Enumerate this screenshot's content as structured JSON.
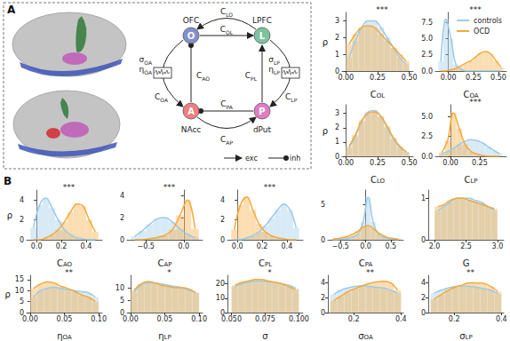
{
  "panel_labels": [
    "A",
    "B"
  ],
  "diagram": {
    "nodes": [
      {
        "id": "O",
        "label": "O",
        "name": "OFC",
        "color": "#8190cf"
      },
      {
        "id": "L",
        "label": "L",
        "name": "LPFC",
        "color": "#7cc39c"
      },
      {
        "id": "A",
        "label": "A",
        "name": "NAcc",
        "color": "#ee7f80"
      },
      {
        "id": "P",
        "label": "P",
        "name": "dPut",
        "color": "#e07cc6"
      }
    ],
    "edges": [
      {
        "from": "L",
        "to": "O",
        "label": {
          "base": "C",
          "sub": "LO"
        },
        "kind": "exc"
      },
      {
        "from": "O",
        "to": "L",
        "label": {
          "base": "C",
          "sub": "OL"
        },
        "kind": "exc"
      },
      {
        "from": "O",
        "to": "A",
        "label": {
          "base": "C",
          "sub": "OA"
        },
        "kind": "exc",
        "noise": [
          {
            "base": "σ",
            "sub": "OA"
          },
          {
            "base": "η",
            "sub": "OA"
          }
        ]
      },
      {
        "from": "A",
        "to": "O",
        "label": {
          "base": "C",
          "sub": "AO"
        },
        "kind": "inh"
      },
      {
        "from": "L",
        "to": "P",
        "label": {
          "base": "C",
          "sub": "LP"
        },
        "kind": "exc",
        "noise": [
          {
            "base": "σ",
            "sub": "LP"
          },
          {
            "base": "η",
            "sub": "LP"
          }
        ]
      },
      {
        "from": "P",
        "to": "L",
        "label": {
          "base": "C",
          "sub": "PL"
        },
        "kind": "exc"
      },
      {
        "from": "P",
        "to": "A",
        "label": {
          "base": "C",
          "sub": "PA"
        },
        "kind": "inh"
      },
      {
        "from": "A",
        "to": "P",
        "label": {
          "base": "C",
          "sub": "AP"
        },
        "kind": "exc"
      }
    ],
    "key": [
      {
        "kind": "exc",
        "label": "exc",
        "marker": "arrow"
      },
      {
        "kind": "inh",
        "label": "inh",
        "marker": "circle"
      }
    ]
  },
  "chart_data": [
    {
      "type": "histogram",
      "title": "***",
      "xlabel": {
        "base": "C",
        "sub": "OL"
      },
      "ylabel": "ρ",
      "bins": [
        0,
        0.05,
        0.1,
        0.15,
        0.2,
        0.25,
        0.3,
        0.35,
        0.4,
        0.45,
        0.5
      ],
      "series": [
        {
          "name": "controls",
          "color": "#9ccae8",
          "values": [
            0.8,
            1.8,
            2.6,
            3.0,
            3.0,
            2.6,
            2.0,
            1.4,
            0.8,
            0.4
          ]
        },
        {
          "name": "OCD",
          "color": "#f4a93c",
          "values": [
            1.6,
            2.2,
            2.6,
            2.7,
            2.6,
            2.2,
            1.8,
            1.4,
            1.0,
            0.6
          ]
        }
      ],
      "xlim": [
        -0.03,
        0.53
      ],
      "xticks": [
        {
          "value": 0,
          "label": "0.00"
        },
        0.25,
        {
          "value": 0.5,
          "label": "0.50"
        }
      ],
      "ylim": [
        0,
        3.5
      ],
      "yticks": [
        0,
        1,
        2,
        3
      ]
    },
    {
      "type": "histogram",
      "title": "***",
      "xlabel": {
        "base": "C",
        "sub": "OA"
      },
      "legend": "upper right",
      "bins": [
        -0.1,
        -0.05,
        0,
        0.05,
        0.1,
        0.15,
        0.2,
        0.25,
        0.3,
        0.35,
        0.4,
        0.45,
        0.5,
        0.55
      ],
      "series": [
        {
          "name": "controls",
          "color": "#9ccae8",
          "values": [
            1.5,
            8.0,
            5.0,
            1.0,
            0.3,
            0,
            0,
            0,
            0,
            0,
            0,
            0,
            0
          ]
        },
        {
          "name": "OCD",
          "color": "#f4a93c",
          "values": [
            0,
            0,
            0.2,
            0.4,
            0.8,
            1.2,
            1.6,
            2.2,
            2.8,
            3.0,
            2.6,
            1.6,
            0.6
          ]
        }
      ],
      "xlim": [
        -0.13,
        0.58
      ],
      "xticks": [
        {
          "value": 0,
          "label": "0.00"
        },
        0.25,
        {
          "value": 0.5,
          "label": "0.50"
        }
      ],
      "ylim": [
        0,
        9
      ],
      "yticks": [
        {
          "value": 0,
          "label": "0.0"
        },
        2.5,
        {
          "value": 5,
          "label": "5.0"
        },
        7.5
      ]
    },
    {
      "type": "histogram",
      "xlabel": {
        "base": "C",
        "sub": "LO"
      },
      "ylabel": "ρ",
      "bins": [
        0,
        0.05,
        0.1,
        0.15,
        0.2,
        0.25,
        0.3,
        0.35,
        0.4,
        0.45,
        0.5
      ],
      "series": [
        {
          "name": "controls",
          "color": "#9ccae8",
          "values": [
            0.6,
            1.4,
            2.4,
            3.1,
            3.2,
            2.8,
            2.0,
            1.2,
            0.6,
            0.3
          ]
        },
        {
          "name": "OCD",
          "color": "#f4a93c",
          "values": [
            0.7,
            1.5,
            2.5,
            3.0,
            3.1,
            2.8,
            2.1,
            1.3,
            0.7,
            0.3
          ]
        }
      ],
      "xlim": [
        -0.03,
        0.53
      ],
      "xticks": [
        {
          "value": 0,
          "label": "0.00"
        },
        0.25,
        {
          "value": 0.5,
          "label": "0.50"
        }
      ],
      "ylim": [
        0,
        3.6
      ],
      "yticks": [
        0,
        1,
        2,
        3
      ]
    },
    {
      "type": "histogram",
      "title": "***",
      "xlabel": {
        "base": "C",
        "sub": "LP"
      },
      "bins": [
        -0.1,
        -0.05,
        0,
        0.05,
        0.1,
        0.15,
        0.2,
        0.25,
        0.3,
        0.35,
        0.4,
        0.45
      ],
      "series": [
        {
          "name": "controls",
          "color": "#9ccae8",
          "values": [
            0.3,
            0.6,
            1.0,
            1.5,
            1.9,
            2.1,
            2.0,
            1.7,
            1.2,
            0.7,
            0.3
          ]
        },
        {
          "name": "OCD",
          "color": "#f4a93c",
          "values": [
            0.5,
            2.0,
            5.5,
            3.5,
            1.5,
            0.6,
            0.3,
            0.1,
            0,
            0,
            0
          ]
        }
      ],
      "xlim": [
        -0.13,
        0.48
      ],
      "xticks": [
        {
          "value": 0,
          "label": "0.00"
        },
        0.25
      ],
      "ylim": [
        0,
        6.5
      ],
      "yticks": [
        {
          "value": 0,
          "label": "0.0"
        },
        2.5,
        {
          "value": 5,
          "label": "5.0"
        }
      ]
    },
    {
      "type": "histogram",
      "title": "***",
      "xlabel": {
        "base": "C",
        "sub": "AO"
      },
      "ylabel": "ρ",
      "bins": [
        -0.05,
        0,
        0.05,
        0.1,
        0.15,
        0.2,
        0.25,
        0.3,
        0.35,
        0.4,
        0.45,
        0.5
      ],
      "series": [
        {
          "name": "controls",
          "color": "#9ccae8",
          "values": [
            1.2,
            3.5,
            4.2,
            3.2,
            2.0,
            1.0,
            0.5,
            0.2,
            0.1,
            0,
            0
          ]
        },
        {
          "name": "OCD",
          "color": "#f4a93c",
          "values": [
            0,
            0,
            0.2,
            0.5,
            1.0,
            1.8,
            2.8,
            3.6,
            3.4,
            2.0,
            0.8
          ]
        }
      ],
      "xlim": [
        -0.08,
        0.53
      ],
      "xticks": [
        {
          "value": 0,
          "label": "0.0"
        },
        0.2,
        0.4
      ],
      "ylim": [
        0,
        5
      ],
      "yticks": [
        0,
        2,
        4
      ]
    },
    {
      "type": "histogram",
      "title": "***",
      "xlabel": {
        "base": "C",
        "sub": "AP"
      },
      "bins": [
        -0.7,
        -0.6,
        -0.5,
        -0.4,
        -0.3,
        -0.2,
        -0.1,
        0,
        0.1,
        0.2
      ],
      "series": [
        {
          "name": "controls",
          "color": "#9ccae8",
          "values": [
            0.3,
            0.8,
            1.4,
            1.9,
            2.0,
            1.6,
            1.0,
            0.5,
            0.2
          ]
        },
        {
          "name": "OCD",
          "color": "#f4a93c",
          "values": [
            0,
            0,
            0.1,
            0.2,
            0.4,
            0.9,
            2.2,
            3.6,
            1.0
          ]
        }
      ],
      "xlim": [
        -0.75,
        0.25
      ],
      "xticks": [
        {
          "value": -0.5,
          "label": "−0.5"
        },
        {
          "value": 0,
          "label": "0.0"
        }
      ],
      "ylim": [
        0,
        4.5
      ],
      "yticks": [
        0,
        2,
        4
      ]
    },
    {
      "type": "histogram",
      "title": "***",
      "xlabel": {
        "base": "C",
        "sub": "PL"
      },
      "bins": [
        -0.05,
        0,
        0.05,
        0.1,
        0.15,
        0.2,
        0.25,
        0.3,
        0.35,
        0.4,
        0.45,
        0.5
      ],
      "series": [
        {
          "name": "controls",
          "color": "#9ccae8",
          "values": [
            0,
            0,
            0.2,
            0.4,
            0.8,
            1.4,
            2.2,
            3.0,
            3.6,
            3.0,
            1.2
          ]
        },
        {
          "name": "OCD",
          "color": "#f4a93c",
          "values": [
            1.0,
            3.5,
            4.3,
            3.0,
            1.6,
            0.8,
            0.4,
            0.2,
            0.1,
            0,
            0
          ]
        }
      ],
      "xlim": [
        -0.08,
        0.53
      ],
      "xticks": [
        {
          "value": 0,
          "label": "0.0"
        },
        0.2,
        0.4
      ],
      "ylim": [
        0,
        5
      ],
      "yticks": [
        0,
        2,
        4
      ]
    },
    {
      "type": "histogram",
      "xlabel": {
        "base": "C",
        "sub": "PA"
      },
      "bins": [
        -0.7,
        -0.6,
        -0.5,
        -0.4,
        -0.3,
        -0.2,
        -0.1,
        0,
        0.1,
        0.2,
        0.3,
        0.4,
        0.5,
        0.6,
        0.7
      ],
      "series": [
        {
          "name": "controls",
          "color": "#9ccae8",
          "values": [
            0,
            0,
            0.1,
            0.2,
            0.4,
            0.8,
            2.5,
            6.0,
            2.5,
            0.8,
            0.4,
            0.2,
            0.1,
            0
          ]
        },
        {
          "name": "OCD",
          "color": "#f4a93c",
          "values": [
            0.1,
            0.2,
            0.3,
            0.5,
            0.8,
            1.2,
            1.8,
            2.0,
            1.6,
            1.0,
            0.6,
            0.3,
            0.2,
            0.1
          ]
        }
      ],
      "xlim": [
        -0.75,
        0.75
      ],
      "xticks": [
        {
          "value": -0.5,
          "label": "−0.5"
        },
        {
          "value": 0,
          "label": "0.0"
        },
        0.5
      ],
      "ylim": [
        0,
        7
      ],
      "yticks": [
        0,
        5
      ]
    },
    {
      "type": "histogram",
      "xlabel": {
        "base": "G"
      },
      "bins": [
        2.0,
        2.1,
        2.2,
        2.3,
        2.4,
        2.5,
        2.6,
        2.7,
        2.8,
        2.9,
        3.0
      ],
      "series": [
        {
          "name": "controls",
          "color": "#9ccae8",
          "values": [
            0.7,
            0.8,
            0.9,
            1.0,
            1.0,
            1.0,
            0.95,
            0.9,
            0.8,
            0.7
          ]
        },
        {
          "name": "OCD",
          "color": "#f4a93c",
          "values": [
            0.8,
            0.85,
            0.95,
            1.0,
            1.0,
            0.95,
            0.9,
            0.85,
            0.8,
            0.75
          ]
        }
      ],
      "xlim": [
        1.9,
        3.1
      ],
      "xticks": [
        {
          "value": 2,
          "label": "2.0"
        },
        2.5,
        {
          "value": 3,
          "label": "3.0"
        }
      ],
      "ylim": [
        0,
        1.2
      ],
      "yticks": [
        0,
        1
      ]
    },
    {
      "type": "histogram",
      "title": "**",
      "xlabel": {
        "base": "η",
        "sub": "OA"
      },
      "ylabel": "ρ",
      "bins": [
        0,
        0.01,
        0.02,
        0.03,
        0.04,
        0.05,
        0.06,
        0.07,
        0.08,
        0.09,
        0.1
      ],
      "series": [
        {
          "name": "controls",
          "color": "#9ccae8",
          "values": [
            7,
            10,
            11,
            11.5,
            11,
            10.5,
            10,
            9.5,
            9,
            7
          ]
        },
        {
          "name": "OCD",
          "color": "#f4a93c",
          "values": [
            11,
            13,
            14,
            13.5,
            12,
            11,
            9.5,
            8,
            7,
            5
          ]
        }
      ],
      "xlim": [
        -0.005,
        0.105
      ],
      "xticks": [
        {
          "value": 0,
          "label": "0.00"
        },
        0.05,
        {
          "value": 0.1,
          "label": "0.10"
        }
      ],
      "ylim": [
        0,
        17
      ],
      "yticks": [
        0,
        5,
        10,
        15
      ]
    },
    {
      "type": "histogram",
      "title": "*",
      "xlabel": {
        "base": "η",
        "sub": "LP"
      },
      "bins": [
        0,
        0.01,
        0.02,
        0.03,
        0.04,
        0.05,
        0.06,
        0.07,
        0.08,
        0.09,
        0.1
      ],
      "series": [
        {
          "name": "controls",
          "color": "#9ccae8",
          "values": [
            8,
            11,
            12,
            12,
            11.5,
            11,
            10.5,
            10,
            9,
            8
          ]
        },
        {
          "name": "OCD",
          "color": "#f4a93c",
          "values": [
            9,
            11.5,
            12.5,
            12,
            11,
            10.5,
            10,
            10,
            9.5,
            8
          ]
        }
      ],
      "xlim": [
        -0.005,
        0.105
      ],
      "xticks": [
        {
          "value": 0,
          "label": "0.00"
        },
        0.05,
        {
          "value": 0.1,
          "label": "0.10"
        }
      ],
      "ylim": [
        0,
        15
      ],
      "yticks": [
        0,
        5,
        10
      ]
    },
    {
      "type": "histogram",
      "title": "*",
      "xlabel": {
        "base": "σ"
      },
      "bins": [
        0.05,
        0.055,
        0.06,
        0.065,
        0.07,
        0.075,
        0.08,
        0.085,
        0.09,
        0.095,
        0.1
      ],
      "series": [
        {
          "name": "controls",
          "color": "#9ccae8",
          "values": [
            18,
            20,
            21,
            22,
            22,
            21.5,
            21,
            20,
            19,
            17
          ]
        },
        {
          "name": "OCD",
          "color": "#f4a93c",
          "values": [
            19,
            21,
            22,
            23,
            23,
            22,
            21,
            20,
            18,
            16
          ]
        }
      ],
      "xlim": [
        0.047,
        0.103
      ],
      "xticks": [
        {
          "value": 0.05,
          "label": "0.050"
        },
        0.075,
        {
          "value": 0.1,
          "label": "0.100"
        }
      ],
      "ylim": [
        0,
        26
      ],
      "yticks": [
        0,
        10,
        20
      ]
    },
    {
      "type": "histogram",
      "title": "**",
      "xlabel": {
        "base": "σ",
        "sub": "OA"
      },
      "bins": [
        0.1,
        0.13,
        0.16,
        0.19,
        0.22,
        0.25,
        0.28,
        0.31,
        0.34,
        0.37,
        0.4
      ],
      "series": [
        {
          "name": "controls",
          "color": "#9ccae8",
          "values": [
            2.4,
            3.0,
            3.3,
            3.5,
            3.6,
            3.5,
            3.4,
            3.3,
            3.0,
            2.6
          ]
        },
        {
          "name": "OCD",
          "color": "#f4a93c",
          "values": [
            1.6,
            2.2,
            2.8,
            3.2,
            3.6,
            3.9,
            4.1,
            4.2,
            4.0,
            3.0
          ]
        }
      ],
      "xlim": [
        0.09,
        0.41
      ],
      "xticks": [
        0.2,
        0.4
      ],
      "ylim": [
        0,
        5
      ],
      "yticks": [
        0,
        2,
        4
      ]
    },
    {
      "type": "histogram",
      "title": "**",
      "xlabel": {
        "base": "σ",
        "sub": "LP"
      },
      "bins": [
        0.1,
        0.13,
        0.16,
        0.19,
        0.22,
        0.25,
        0.28,
        0.31,
        0.34,
        0.37,
        0.4
      ],
      "series": [
        {
          "name": "controls",
          "color": "#9ccae8",
          "values": [
            2.6,
            3.0,
            3.3,
            3.5,
            3.6,
            3.5,
            3.4,
            3.2,
            3.0,
            2.5
          ]
        },
        {
          "name": "OCD",
          "color": "#f4a93c",
          "values": [
            1.8,
            2.4,
            3.0,
            3.4,
            3.7,
            4.0,
            4.0,
            3.9,
            3.5,
            2.8
          ]
        }
      ],
      "xlim": [
        0.09,
        0.41
      ],
      "xticks": [
        0.2,
        0.4
      ],
      "ylim": [
        0,
        5
      ],
      "yticks": [
        0,
        2,
        4
      ]
    }
  ]
}
